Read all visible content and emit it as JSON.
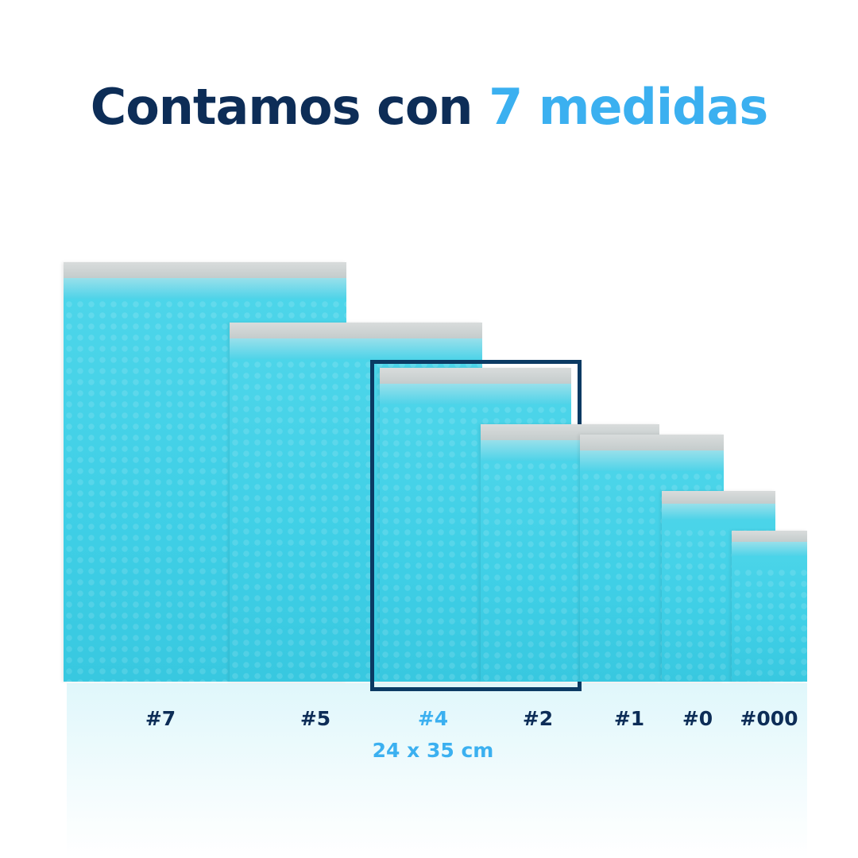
{
  "title": {
    "prefix": "Contamos con ",
    "highlight": "7 medidas"
  },
  "colors": {
    "navy": "#0d2d57",
    "accent": "#3bb0f0",
    "envelope": "#45d0e6"
  },
  "sizes": [
    {
      "label": "#7"
    },
    {
      "label": "#5"
    },
    {
      "label": "#4",
      "selected": true,
      "dimensions": "24 x 35 cm"
    },
    {
      "label": "#2"
    },
    {
      "label": "#1"
    },
    {
      "label": "#0"
    },
    {
      "label": "#000"
    }
  ]
}
